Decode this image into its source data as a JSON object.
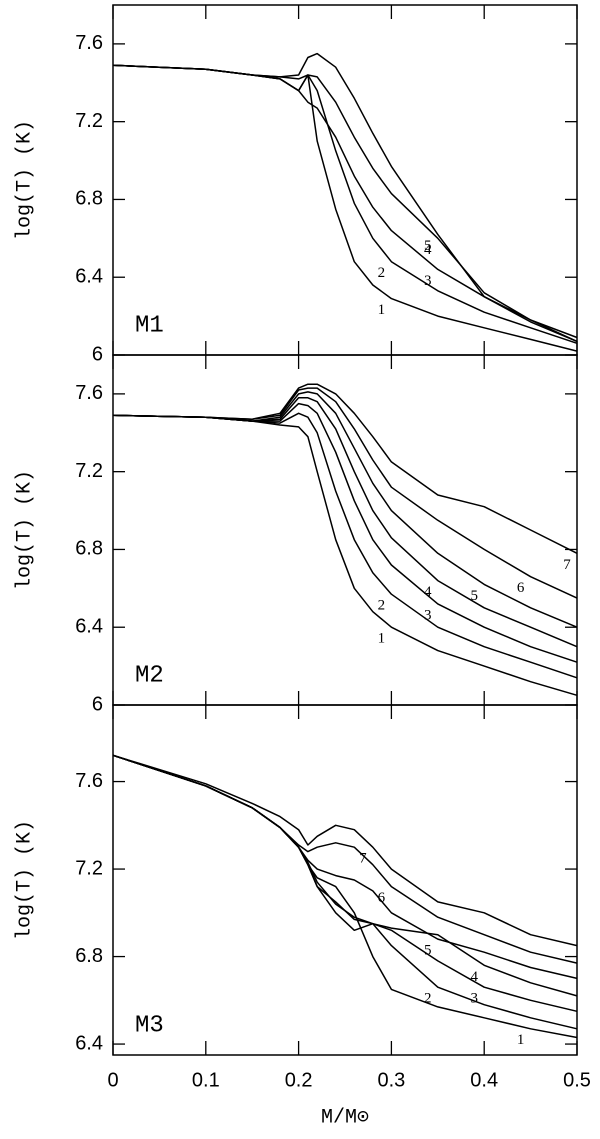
{
  "chart_data": [
    {
      "type": "line",
      "title": "M1",
      "ylabel": "log(T) (K)",
      "x": [
        0,
        0.1,
        0.15,
        0.18,
        0.2,
        0.21,
        0.22,
        0.24,
        0.26,
        0.28,
        0.3,
        0.35,
        0.4,
        0.45,
        0.5
      ],
      "xlim": [
        0,
        0.5
      ],
      "xticks": [
        0,
        0.1,
        0.2,
        0.3,
        0.4,
        0.5
      ],
      "ylim": [
        6,
        7.8
      ],
      "yticks": [
        6,
        6.4,
        6.8,
        7.2,
        7.6
      ],
      "series": [
        {
          "name": "1",
          "color": "#000000",
          "values": [
            7.49,
            7.47,
            7.44,
            7.42,
            7.36,
            7.44,
            7.1,
            6.75,
            6.48,
            6.36,
            6.29,
            6.2,
            6.14,
            6.08,
            6.02
          ]
        },
        {
          "name": "2",
          "color": "#000000",
          "values": [
            7.49,
            7.47,
            7.44,
            7.42,
            7.36,
            7.44,
            7.36,
            7.05,
            6.78,
            6.6,
            6.48,
            6.33,
            6.22,
            6.14,
            6.06
          ]
        },
        {
          "name": "3",
          "color": "#000000",
          "values": [
            7.49,
            7.47,
            7.44,
            7.42,
            7.36,
            7.3,
            7.27,
            7.12,
            6.92,
            6.76,
            6.64,
            6.44,
            6.3,
            6.18,
            6.09
          ]
        },
        {
          "name": "4",
          "color": "#000000",
          "values": [
            7.49,
            7.47,
            7.44,
            7.43,
            7.42,
            7.44,
            7.43,
            7.3,
            7.12,
            6.96,
            6.83,
            6.6,
            6.32,
            6.18,
            6.07
          ]
        },
        {
          "name": "5",
          "color": "#000000",
          "values": [
            7.49,
            7.47,
            7.44,
            7.43,
            7.44,
            7.53,
            7.55,
            7.48,
            7.32,
            7.14,
            6.97,
            6.62,
            6.3,
            6.17,
            6.07
          ]
        }
      ]
    },
    {
      "type": "line",
      "title": "M2",
      "ylabel": "log(T) (K)",
      "x": [
        0,
        0.1,
        0.15,
        0.18,
        0.2,
        0.21,
        0.22,
        0.24,
        0.26,
        0.28,
        0.3,
        0.35,
        0.4,
        0.45,
        0.5
      ],
      "xlim": [
        0,
        0.5
      ],
      "xticks": [
        0,
        0.1,
        0.2,
        0.3,
        0.4,
        0.5
      ],
      "ylim": [
        6,
        7.8
      ],
      "yticks": [
        6,
        6.4,
        6.8,
        7.2,
        7.6
      ],
      "series": [
        {
          "name": "1",
          "color": "#000000",
          "values": [
            7.49,
            7.48,
            7.46,
            7.44,
            7.43,
            7.38,
            7.2,
            6.85,
            6.6,
            6.48,
            6.4,
            6.28,
            6.2,
            6.12,
            6.05
          ]
        },
        {
          "name": "2",
          "color": "#000000",
          "values": [
            7.49,
            7.48,
            7.46,
            7.45,
            7.5,
            7.48,
            7.4,
            7.1,
            6.85,
            6.68,
            6.57,
            6.4,
            6.3,
            6.22,
            6.14
          ]
        },
        {
          "name": "3",
          "color": "#000000",
          "values": [
            7.49,
            7.48,
            7.46,
            7.46,
            7.55,
            7.54,
            7.5,
            7.3,
            7.05,
            6.85,
            6.72,
            6.52,
            6.4,
            6.3,
            6.22
          ]
        },
        {
          "name": "4",
          "color": "#000000",
          "values": [
            7.49,
            7.48,
            7.46,
            7.47,
            7.58,
            7.58,
            7.56,
            7.42,
            7.2,
            7.0,
            6.86,
            6.64,
            6.5,
            6.4,
            6.3
          ]
        },
        {
          "name": "5",
          "color": "#000000",
          "values": [
            7.49,
            7.48,
            7.46,
            7.48,
            7.6,
            7.61,
            7.6,
            7.5,
            7.32,
            7.14,
            7.0,
            6.78,
            6.62,
            6.5,
            6.4
          ]
        },
        {
          "name": "6",
          "color": "#000000",
          "values": [
            7.49,
            7.48,
            7.47,
            7.49,
            7.62,
            7.63,
            7.63,
            7.56,
            7.42,
            7.26,
            7.12,
            6.95,
            6.8,
            6.66,
            6.55
          ]
        },
        {
          "name": "7",
          "color": "#000000",
          "values": [
            7.49,
            7.48,
            7.47,
            7.5,
            7.63,
            7.65,
            7.65,
            7.6,
            7.5,
            7.38,
            7.25,
            7.08,
            7.02,
            6.9,
            6.78
          ]
        }
      ]
    },
    {
      "type": "line",
      "title": "M3",
      "ylabel": "log(T) (K)",
      "xlabel": "M/M⊙",
      "x": [
        0,
        0.1,
        0.15,
        0.18,
        0.2,
        0.21,
        0.22,
        0.24,
        0.26,
        0.28,
        0.3,
        0.35,
        0.4,
        0.45,
        0.5
      ],
      "xlim": [
        0,
        0.5
      ],
      "xticks": [
        0,
        0.1,
        0.2,
        0.3,
        0.4,
        0.5
      ],
      "ylim": [
        6.35,
        7.95
      ],
      "yticks": [
        6.4,
        6.8,
        7.2,
        7.6
      ],
      "series": [
        {
          "name": "1",
          "color": "#000000",
          "values": [
            7.72,
            7.58,
            7.48,
            7.39,
            7.3,
            7.22,
            7.16,
            7.12,
            7.0,
            6.8,
            6.65,
            6.57,
            6.52,
            6.47,
            6.43
          ]
        },
        {
          "name": "2",
          "color": "#000000",
          "values": [
            7.72,
            7.58,
            7.48,
            7.39,
            7.3,
            7.22,
            7.12,
            7.05,
            6.97,
            6.95,
            6.85,
            6.66,
            6.58,
            6.52,
            6.47
          ]
        },
        {
          "name": "3",
          "color": "#000000",
          "values": [
            7.72,
            7.58,
            7.48,
            7.39,
            7.3,
            7.22,
            7.12,
            7.0,
            6.92,
            6.95,
            6.92,
            6.78,
            6.66,
            6.6,
            6.55
          ]
        },
        {
          "name": "4",
          "color": "#000000",
          "values": [
            7.72,
            7.58,
            7.48,
            7.39,
            7.3,
            7.23,
            7.14,
            7.04,
            6.98,
            6.95,
            6.93,
            6.9,
            6.76,
            6.68,
            6.62
          ]
        },
        {
          "name": "5",
          "color": "#000000",
          "values": [
            7.72,
            7.58,
            7.48,
            7.39,
            7.3,
            7.24,
            7.2,
            7.17,
            7.15,
            7.1,
            7.0,
            6.88,
            6.82,
            6.75,
            6.7
          ]
        },
        {
          "name": "6",
          "color": "#000000",
          "values": [
            7.72,
            7.58,
            7.48,
            7.39,
            7.31,
            7.28,
            7.3,
            7.32,
            7.3,
            7.22,
            7.12,
            6.98,
            6.9,
            6.82,
            6.77
          ]
        },
        {
          "name": "7",
          "color": "#000000",
          "values": [
            7.72,
            7.59,
            7.5,
            7.44,
            7.38,
            7.31,
            7.35,
            7.4,
            7.38,
            7.3,
            7.2,
            7.05,
            7.0,
            6.9,
            6.85
          ]
        }
      ]
    }
  ]
}
